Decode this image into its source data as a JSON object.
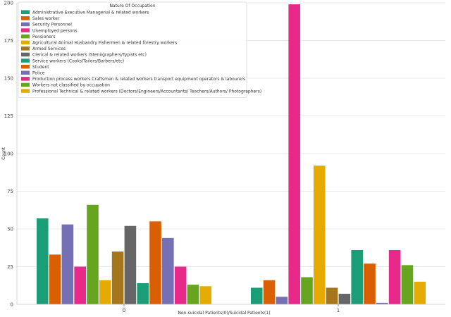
{
  "chart_data": {
    "type": "bar",
    "title": "",
    "xlabel": "Non-suicidal Patients(0)/Suicidal Patients(1)",
    "ylabel": "Count",
    "ylim": [
      0,
      200
    ],
    "yticks": [
      0,
      25,
      50,
      75,
      100,
      125,
      150,
      175,
      200
    ],
    "categories": [
      "0",
      "1"
    ],
    "grid": "y",
    "legend": {
      "title": "Nature Of Occupation",
      "placement": "top-left"
    },
    "series": [
      {
        "name": "Administrative Executive Managerial & related workers",
        "color": "#1b9e77",
        "values": [
          57,
          11
        ]
      },
      {
        "name": "Sales worker",
        "color": "#d95f02",
        "values": [
          33,
          16
        ]
      },
      {
        "name": "Security Personnel",
        "color": "#7570b3",
        "values": [
          53,
          5
        ]
      },
      {
        "name": "Unemployed persons",
        "color": "#e7298a",
        "values": [
          25,
          199
        ]
      },
      {
        "name": "Pensioners",
        "color": "#66a61e",
        "values": [
          66,
          18
        ]
      },
      {
        "name": "Agricultural Animal Husbandry Fishermen & related forestry workers",
        "color": "#e6ab02",
        "values": [
          16,
          92
        ]
      },
      {
        "name": "Armed Services",
        "color": "#a6761d",
        "values": [
          35,
          11
        ]
      },
      {
        "name": "Clerical & related workers (Stenographers/Typists etc)",
        "color": "#666666",
        "values": [
          52,
          7
        ]
      },
      {
        "name": "Service workers (Cooks/Tailors/Barbers/etc)",
        "color": "#1b9e77",
        "values": [
          14,
          36
        ]
      },
      {
        "name": "Student",
        "color": "#d95f02",
        "values": [
          55,
          27
        ]
      },
      {
        "name": "Police",
        "color": "#7570b3",
        "values": [
          44,
          1
        ]
      },
      {
        "name": "Production process workers Craftsmen & related workers transport equipment operators & labourers",
        "color": "#e7298a",
        "values": [
          25,
          36
        ]
      },
      {
        "name": "Workers not classified by occupation",
        "color": "#66a61e",
        "values": [
          13,
          26
        ]
      },
      {
        "name": "Professional Technical & related workers (Doctors/Engineers/Accountants/ Teachers/Authors/ Photographers)",
        "color": "#e6ab02",
        "values": [
          12,
          15
        ]
      }
    ]
  }
}
